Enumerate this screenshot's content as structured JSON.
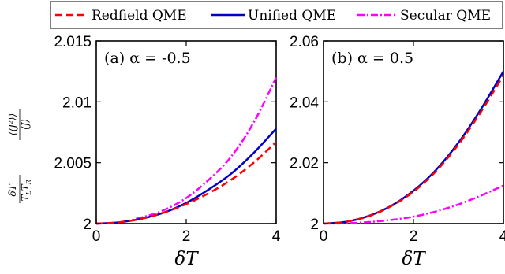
{
  "legend": {
    "placement": "top",
    "entries": [
      {
        "label": "Redfield QME",
        "color": "#ff0000",
        "dash": "dashed"
      },
      {
        "label": "Unified QME",
        "color": "#0000c8",
        "dash": "solid"
      },
      {
        "label": "Secular QME",
        "color": "#ff00ff",
        "dash": "dashdot"
      }
    ]
  },
  "ylabel": "δT/(T_L T_R) · ⟨⟨J²⟩⟩/⟨J⟩",
  "chart_data": [
    {
      "type": "line",
      "annotation": "(a) α = -0.5",
      "xlabel": "δT",
      "xlim": [
        0,
        4
      ],
      "ylim": [
        2,
        2.015
      ],
      "xticks": [
        "0",
        "2",
        "4"
      ],
      "yticks": [
        "2",
        "2.005",
        "2.01",
        "2.015"
      ],
      "x": [
        0,
        0.5,
        1,
        1.5,
        2,
        2.5,
        3,
        3.5,
        4
      ],
      "series": [
        {
          "name": "Redfield QME",
          "values": [
            2.0,
            2.0001,
            2.0004,
            2.0009,
            2.0016,
            2.0025,
            2.0036,
            2.005,
            2.0067
          ]
        },
        {
          "name": "Unified QME",
          "values": [
            2.0,
            2.0001,
            2.0004,
            2.0009,
            2.0017,
            2.0028,
            2.0041,
            2.0058,
            2.0078
          ]
        },
        {
          "name": "Secular QME",
          "values": [
            2.0,
            2.0001,
            2.0005,
            2.0011,
            2.0021,
            2.0036,
            2.0055,
            2.0083,
            2.012
          ]
        }
      ],
      "grid": false
    },
    {
      "type": "line",
      "annotation": "(b) α = 0.5",
      "xlabel": "δT",
      "xlim": [
        0,
        4
      ],
      "ylim": [
        2,
        2.06
      ],
      "xticks": [
        "0",
        "2",
        "4"
      ],
      "yticks": [
        "2",
        "2.02",
        "2.04",
        "2.06"
      ],
      "x": [
        0,
        0.5,
        1,
        1.5,
        2,
        2.5,
        3,
        3.5,
        4
      ],
      "series": [
        {
          "name": "Redfield QME",
          "values": [
            2.0,
            2.0006,
            2.0024,
            2.0057,
            2.0105,
            2.0172,
            2.026,
            2.0367,
            2.0487
          ]
        },
        {
          "name": "Unified QME",
          "values": [
            2.0,
            2.0006,
            2.0025,
            2.0058,
            2.0108,
            2.0176,
            2.0266,
            2.0376,
            2.05
          ]
        },
        {
          "name": "Secular QME",
          "values": [
            2.0,
            2.0001,
            2.0005,
            2.0012,
            2.0023,
            2.004,
            2.0063,
            2.0092,
            2.0125
          ]
        }
      ],
      "grid": false
    }
  ]
}
